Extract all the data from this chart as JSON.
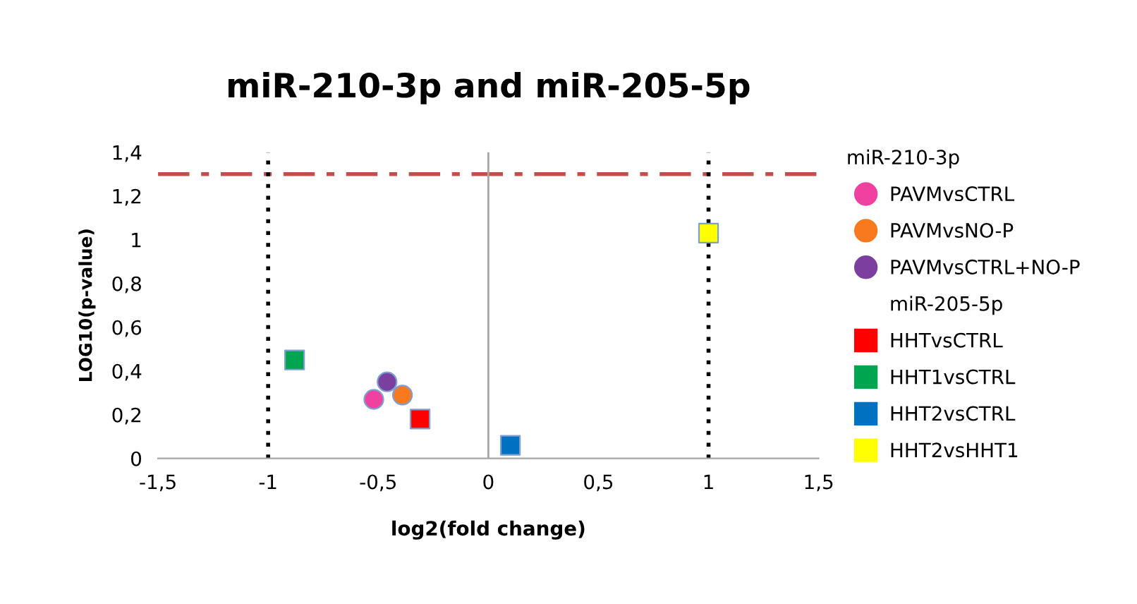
{
  "chart_data": {
    "type": "scatter",
    "title": "miR-210-3p and miR-205-5p",
    "xlabel": "log2(fold change)",
    "ylabel": "LOG10(p-value)",
    "legend_title": "miR-210-3p",
    "annotations": [
      "miR-205-5p"
    ],
    "series": [
      {
        "name": "PAVMvsCTRL",
        "color": "#f040a0",
        "marker": "circle",
        "x": [
          -0.52
        ],
        "values": [
          0.27
        ]
      },
      {
        "name": "PAVMvsNO-P",
        "color": "#f97a1e",
        "marker": "circle",
        "x": [
          -0.39
        ],
        "values": [
          0.29
        ]
      },
      {
        "name": "PAVMvsCTRL+NO-P",
        "color": "#7b3fa0",
        "marker": "circle",
        "x": [
          -0.46
        ],
        "values": [
          0.35
        ]
      },
      {
        "name": "HHTvsCTRL",
        "color": "#ff0000",
        "marker": "square",
        "x": [
          -0.31
        ],
        "values": [
          0.18
        ]
      },
      {
        "name": "HHT1vsCTRL",
        "color": "#00a550",
        "marker": "square",
        "x": [
          -0.88
        ],
        "values": [
          0.45
        ]
      },
      {
        "name": "HHT2vsCTRL",
        "color": "#0070c0",
        "marker": "square",
        "x": [
          0.1
        ],
        "values": [
          0.06
        ]
      },
      {
        "name": "HHT2vsHHT1",
        "color": "#ffff00",
        "marker": "square",
        "x": [
          1.0
        ],
        "values": [
          1.03
        ]
      }
    ],
    "xlim": [
      -1.5,
      1.5
    ],
    "ylim": [
      0,
      1.4
    ],
    "xticks": [
      {
        "value": -1.5,
        "label": "-1,5"
      },
      {
        "value": -1,
        "label": "-1"
      },
      {
        "value": -0.5,
        "label": "-0,5"
      },
      {
        "value": 0,
        "label": "0"
      },
      {
        "value": 0.5,
        "label": "0,5"
      },
      {
        "value": 1,
        "label": "1"
      },
      {
        "value": 1.5,
        "label": "1,5"
      }
    ],
    "yticks": [
      0,
      {
        "value": 0.2,
        "label": "0,2"
      },
      {
        "value": 0.4,
        "label": "0,4"
      },
      {
        "value": 0.6,
        "label": "0,6"
      },
      {
        "value": 0.8,
        "label": "0,8"
      },
      1,
      {
        "value": 1.2,
        "label": "1,2"
      },
      {
        "value": 1.4,
        "label": "1,4"
      }
    ],
    "ref_lines": [
      {
        "axis": "y",
        "value": 1.3,
        "color": "#c0504d",
        "line_style": "dashdot"
      },
      {
        "axis": "x",
        "value": -1,
        "color": "#000000",
        "line_style": "dotted"
      },
      {
        "axis": "x",
        "value": 1,
        "color": "#000000",
        "line_style": "dotted"
      },
      {
        "axis": "x",
        "value": 0,
        "color": "#a6a6a6",
        "line_style": "solid"
      }
    ],
    "grid": false,
    "legend": "right"
  }
}
